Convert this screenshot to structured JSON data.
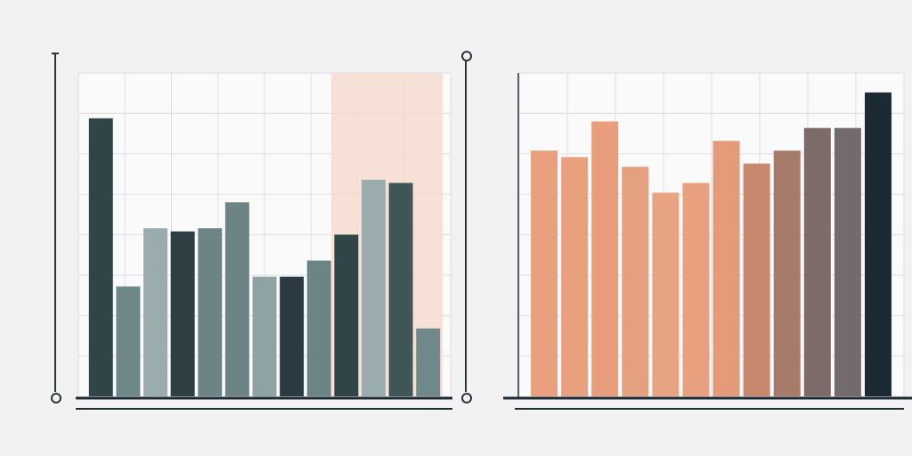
{
  "chart_data": [
    {
      "type": "bar",
      "categories": [
        null,
        null,
        null,
        null,
        null,
        null,
        null,
        null,
        null,
        null,
        null,
        null,
        null
      ],
      "values": [
        86,
        34,
        52,
        51,
        52,
        60,
        37,
        37,
        42,
        50,
        67,
        66,
        21
      ],
      "colors": [
        "#2f4548",
        "#6e8788",
        "#9aacad",
        "#2d3f42",
        "#6d8485",
        "#6d8485",
        "#8fa3a4",
        "#2b3a40",
        "#6d8485",
        "#2f4548",
        "#9aacad",
        "#3f5556",
        "#6f8889"
      ],
      "ylim": [
        0,
        100
      ],
      "grid": true
    },
    {
      "type": "bar",
      "categories": [
        null,
        null,
        null,
        null,
        null,
        null,
        null,
        null,
        null,
        null,
        null,
        null
      ],
      "values": [
        76,
        74,
        85,
        71,
        63,
        66,
        79,
        72,
        76,
        83,
        83,
        94
      ],
      "colors": [
        "#e8a07f",
        "#e8a07f",
        "#e89d7c",
        "#e5a080",
        "#e8a383",
        "#e8a07f",
        "#e49b79",
        "#c8886e",
        "#a87a6a",
        "#7d6b69",
        "#726a6b",
        "#1c2b33"
      ],
      "ylim": [
        0,
        100
      ],
      "grid": true
    }
  ]
}
